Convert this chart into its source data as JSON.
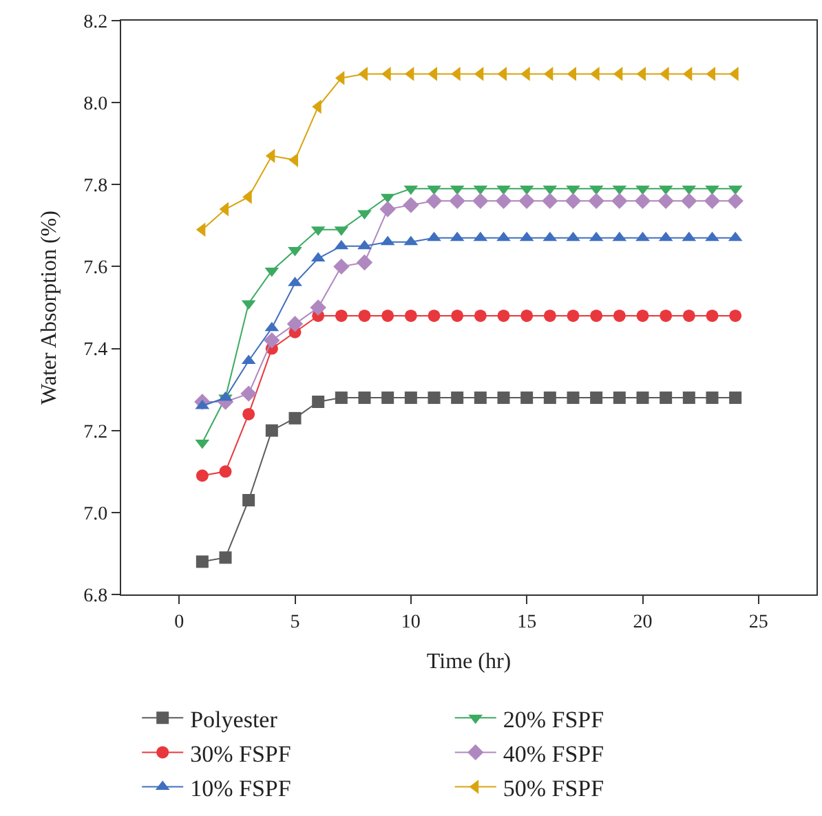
{
  "chart_data": {
    "type": "line",
    "xlabel": "Time (hr)",
    "ylabel": "Water Absorption (%)",
    "x": [
      1,
      2,
      3,
      4,
      5,
      6,
      7,
      8,
      9,
      10,
      11,
      12,
      13,
      14,
      15,
      16,
      17,
      18,
      19,
      20,
      21,
      22,
      23,
      24
    ],
    "xlim": [
      -2.5,
      27.5
    ],
    "xticks": [
      0,
      5,
      10,
      15,
      20,
      25
    ],
    "ylim": [
      6.8,
      8.2
    ],
    "yticks": [
      {
        "value": 6.8,
        "label": "6.8"
      },
      {
        "value": 7.0,
        "label": "7.0"
      },
      {
        "value": 7.2,
        "label": "7.2"
      },
      {
        "value": 7.4,
        "label": "7.4"
      },
      {
        "value": 7.6,
        "label": "7.6"
      },
      {
        "value": 7.8,
        "label": "7.8"
      },
      {
        "value": 8.0,
        "label": "8.0"
      },
      {
        "value": 8.2,
        "label": "8.2"
      }
    ],
    "legend": "bottom",
    "line_style": "solid",
    "series": [
      {
        "name": "Polyester",
        "color": "#5b5b5b",
        "marker": "square",
        "values": [
          6.88,
          6.89,
          7.03,
          7.2,
          7.23,
          7.27,
          7.28,
          7.28,
          7.28,
          7.28,
          7.28,
          7.28,
          7.28,
          7.28,
          7.28,
          7.28,
          7.28,
          7.28,
          7.28,
          7.28,
          7.28,
          7.28,
          7.28,
          7.28
        ]
      },
      {
        "name": "20% FSPF",
        "color": "#3daa62",
        "marker": "triangle-down",
        "values": [
          7.17,
          7.28,
          7.51,
          7.59,
          7.64,
          7.69,
          7.69,
          7.73,
          7.77,
          7.79,
          7.79,
          7.79,
          7.79,
          7.79,
          7.79,
          7.79,
          7.79,
          7.79,
          7.79,
          7.79,
          7.79,
          7.79,
          7.79,
          7.79
        ]
      },
      {
        "name": "30% FSPF",
        "color": "#e8383d",
        "marker": "circle",
        "values": [
          7.09,
          7.1,
          7.24,
          7.4,
          7.44,
          7.48,
          7.48,
          7.48,
          7.48,
          7.48,
          7.48,
          7.48,
          7.48,
          7.48,
          7.48,
          7.48,
          7.48,
          7.48,
          7.48,
          7.48,
          7.48,
          7.48,
          7.48,
          7.48
        ]
      },
      {
        "name": "40% FSPF",
        "color": "#b088c0",
        "marker": "diamond",
        "values": [
          7.27,
          7.27,
          7.29,
          7.42,
          7.46,
          7.5,
          7.6,
          7.61,
          7.74,
          7.75,
          7.76,
          7.76,
          7.76,
          7.76,
          7.76,
          7.76,
          7.76,
          7.76,
          7.76,
          7.76,
          7.76,
          7.76,
          7.76,
          7.76
        ]
      },
      {
        "name": "10% FSPF",
        "color": "#3f6fbf",
        "marker": "triangle-up",
        "values": [
          7.26,
          7.28,
          7.37,
          7.45,
          7.56,
          7.62,
          7.65,
          7.65,
          7.66,
          7.66,
          7.67,
          7.67,
          7.67,
          7.67,
          7.67,
          7.67,
          7.67,
          7.67,
          7.67,
          7.67,
          7.67,
          7.67,
          7.67,
          7.67
        ]
      },
      {
        "name": "50% FSPF",
        "color": "#d9a40e",
        "marker": "triangle-left",
        "values": [
          7.69,
          7.74,
          7.77,
          7.87,
          7.86,
          7.99,
          8.06,
          8.07,
          8.07,
          8.07,
          8.07,
          8.07,
          8.07,
          8.07,
          8.07,
          8.07,
          8.07,
          8.07,
          8.07,
          8.07,
          8.07,
          8.07,
          8.07,
          8.07
        ]
      }
    ]
  }
}
